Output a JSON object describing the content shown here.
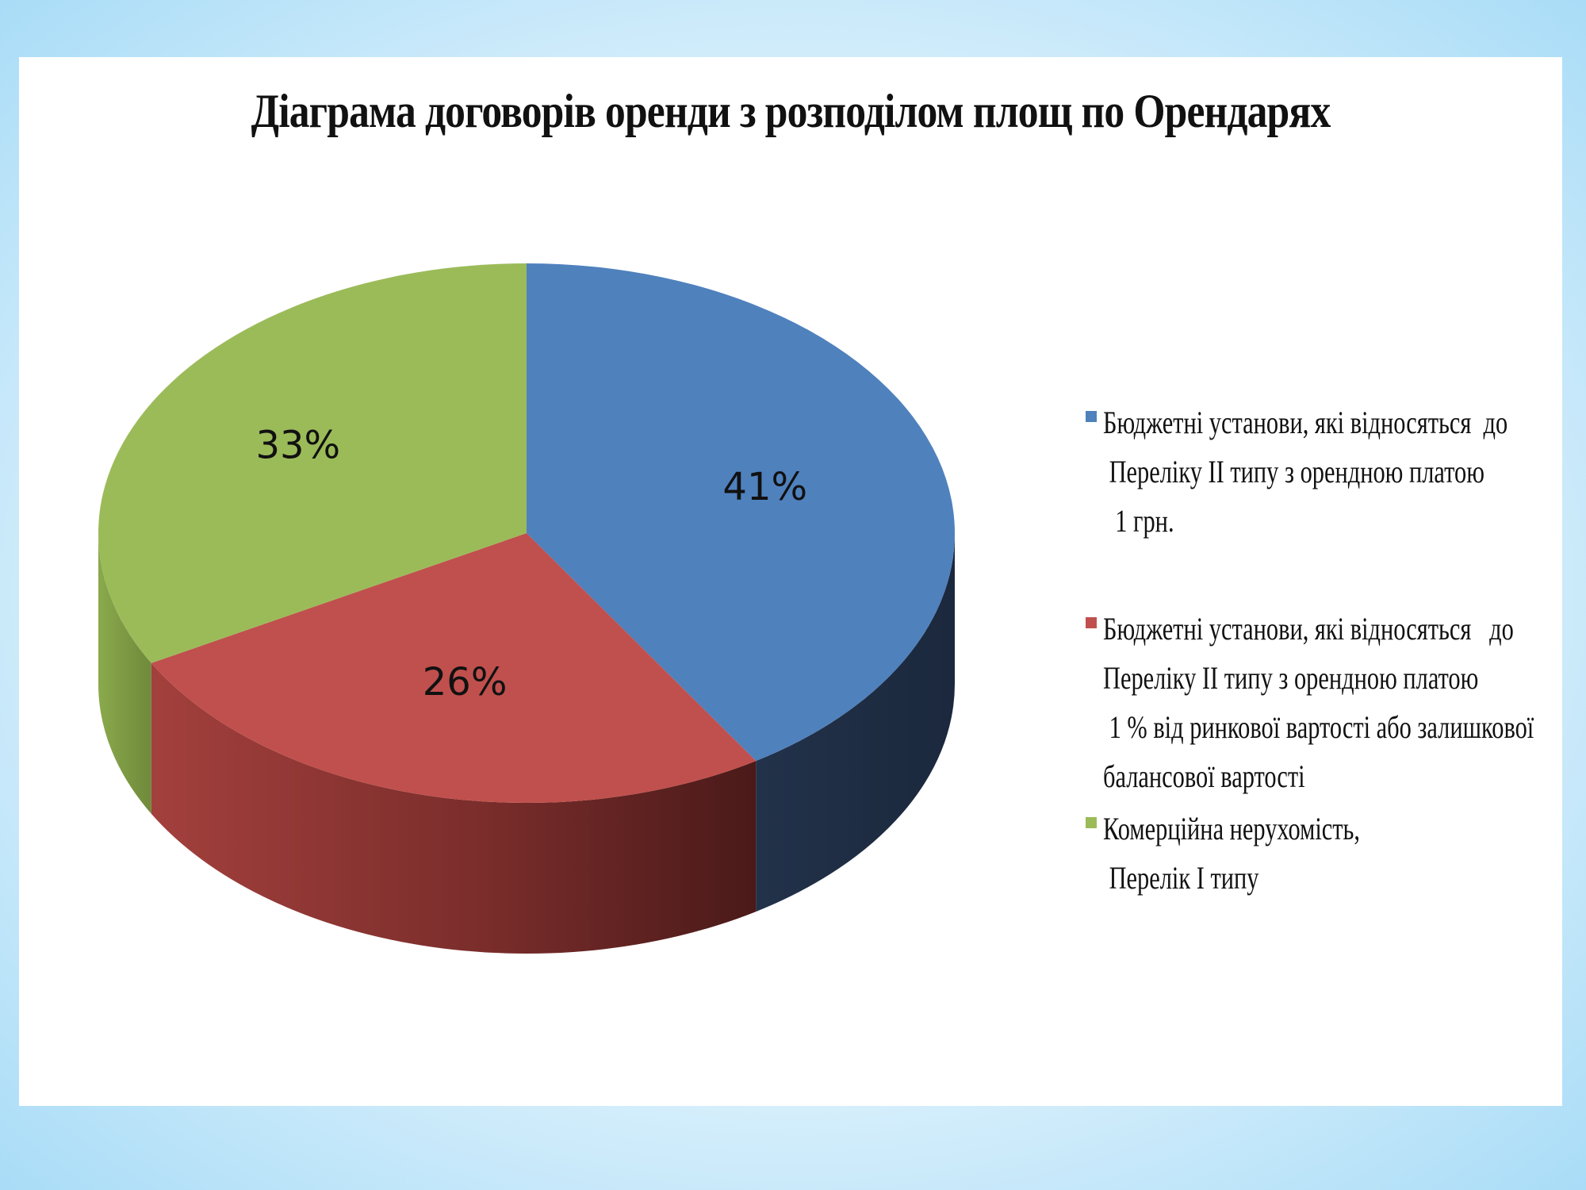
{
  "chart_data": {
    "type": "pie",
    "title": "Діаграма договорів оренди з розподілом площ по Орендарях",
    "three_d": true,
    "categories": [
      "Бюджетні установи, які відносяться до Переліку ІІ типу з орендною платою 1 грн.",
      "Бюджетні установи, які відносяться до Переліку ІІ типу з орендною платою 1 % від ринкової вартості або залишкової балансової вартості",
      "Комерційна нерухомість, Перелік І типу"
    ],
    "values": [
      41,
      26,
      33
    ],
    "labels": [
      "41%",
      "26%",
      "33%"
    ],
    "colors": [
      "#4F81BD",
      "#C0504D",
      "#9BBB59"
    ],
    "legend_position": "right",
    "legend": [
      "Бюджетні установи, які відносяться  до\n Переліку ІІ типу з орендною платою\n  1 грн.",
      "Бюджетні установи, які відносяться   до\nПереліку ІІ типу з орендною платою\n 1 % від ринкової вартості або залишкової\nбалансової вартості",
      "Комерційна нерухомість,\n Перелік І типу"
    ]
  }
}
